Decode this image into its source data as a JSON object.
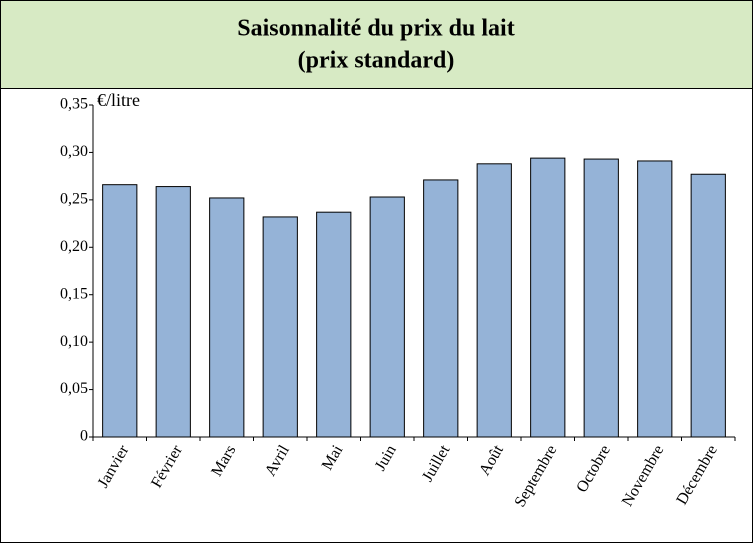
{
  "chart_data": {
    "type": "bar",
    "title": "Saisonnalité du prix du lait",
    "subtitle": "(prix standard)",
    "y_label": "€/litre",
    "categories": [
      "Janvier",
      "Février",
      "Mars",
      "Avril",
      "Mai",
      "Juin",
      "Juillet",
      "Août",
      "Septembre",
      "Octobre",
      "Novembre",
      "Décembre"
    ],
    "values": [
      0.266,
      0.264,
      0.252,
      0.232,
      0.237,
      0.253,
      0.271,
      0.288,
      0.294,
      0.293,
      0.291,
      0.277
    ],
    "color": "#95b3d7",
    "ylim": [
      0,
      0.35
    ],
    "yticks": [
      0,
      {
        "value": 0.05,
        "label": "0,05"
      },
      {
        "value": 0.1,
        "label": "0,10"
      },
      {
        "value": 0.15,
        "label": "0,15"
      },
      {
        "value": 0.2,
        "label": "0,20"
      },
      {
        "value": 0.25,
        "label": "0,25"
      },
      {
        "value": 0.3,
        "label": "0,30"
      },
      {
        "value": 0.35,
        "label": "0,35"
      }
    ],
    "grid": false
  }
}
